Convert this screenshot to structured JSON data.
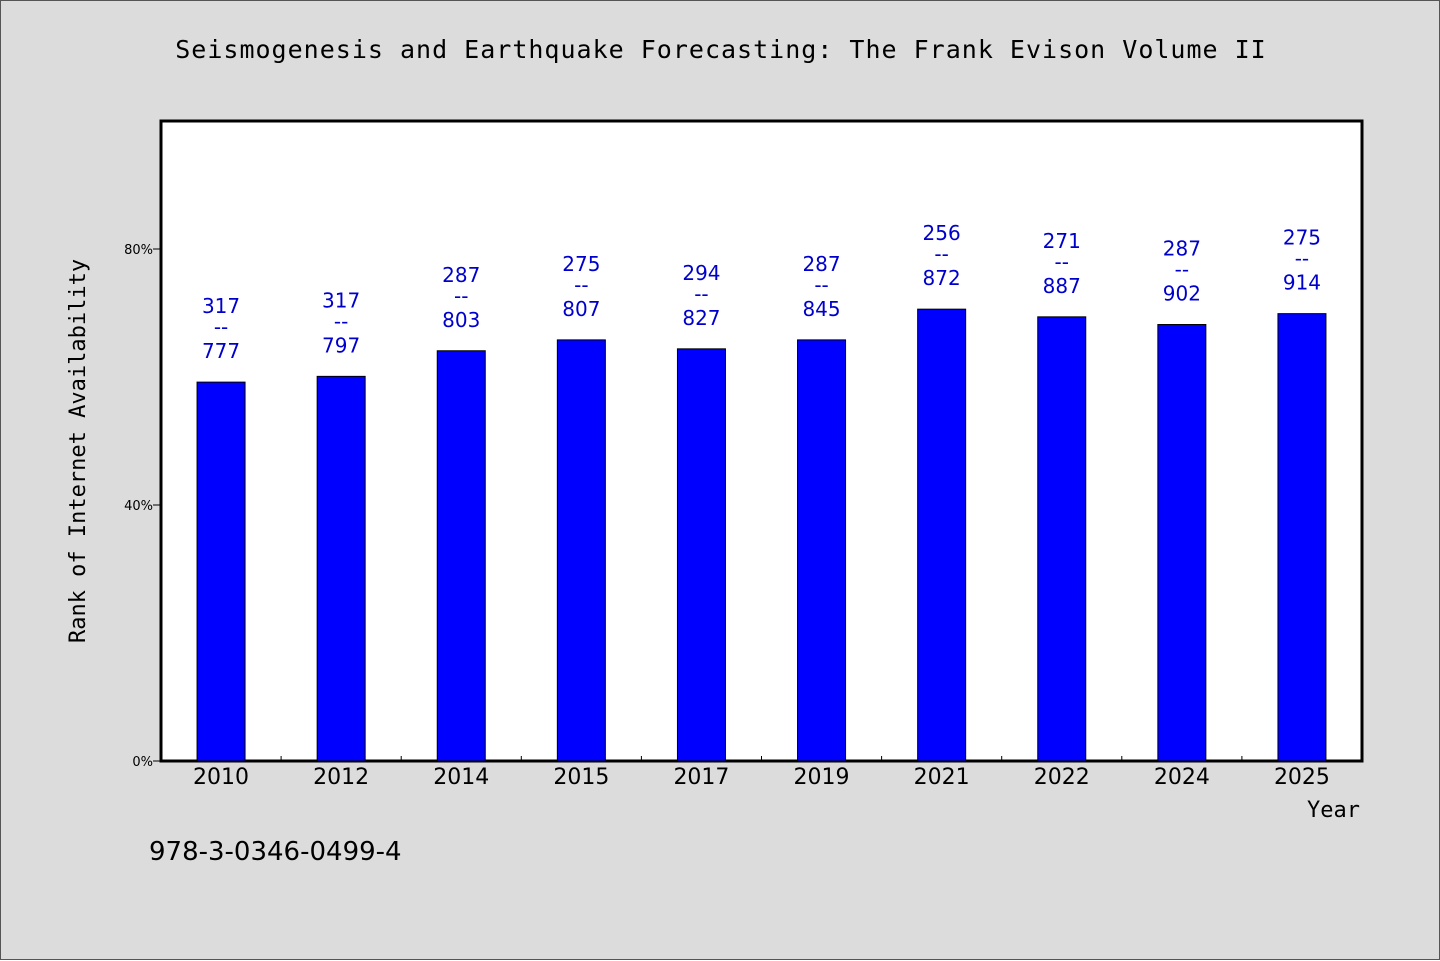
{
  "chart_data": {
    "type": "bar",
    "title": "Seismogenesis and Earthquake Forecasting: The Frank Evison Volume II",
    "xlabel": "Year",
    "ylabel": "Rank of Internet Availability",
    "categories": [
      "2010",
      "2012",
      "2014",
      "2015",
      "2017",
      "2019",
      "2021",
      "2022",
      "2024",
      "2025"
    ],
    "values": [
      59.2,
      60.1,
      64.1,
      65.8,
      64.4,
      65.8,
      70.6,
      69.4,
      68.2,
      69.9
    ],
    "data_labels": [
      {
        "top": "317",
        "bottom": "777"
      },
      {
        "top": "317",
        "bottom": "797"
      },
      {
        "top": "287",
        "bottom": "803"
      },
      {
        "top": "275",
        "bottom": "807"
      },
      {
        "top": "294",
        "bottom": "827"
      },
      {
        "top": "287",
        "bottom": "845"
      },
      {
        "top": "256",
        "bottom": "872"
      },
      {
        "top": "271",
        "bottom": "887"
      },
      {
        "top": "287",
        "bottom": "902"
      },
      {
        "top": "275",
        "bottom": "914"
      }
    ],
    "label_separator": "--",
    "yticks": [
      {
        "value": 0,
        "label": "0%"
      },
      {
        "value": 40,
        "label": "40%"
      },
      {
        "value": 80,
        "label": "80%"
      }
    ],
    "ylim": [
      0,
      100
    ],
    "grid": false,
    "legend": "none",
    "bar_color": "#0000ff",
    "label_color": "#0000cc"
  },
  "footer": {
    "isbn": "978-3-0346-0499-4"
  }
}
